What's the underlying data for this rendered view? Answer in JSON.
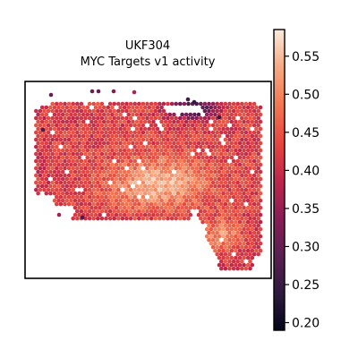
{
  "figure": {
    "sample": "UKF304",
    "subtitle": "MYC Targets v1 activity"
  },
  "chart_data": {
    "type": "scatter",
    "title": "UKF304",
    "subtitle": "MYC Targets v1 activity",
    "xlabel": "",
    "ylabel": "",
    "grid": false,
    "legend": "colorbar-right",
    "colormap": "rocket",
    "colorbar": {
      "min": 0.19,
      "max": 0.585,
      "ticks": [
        0.2,
        0.25,
        0.3,
        0.35,
        0.4,
        0.45,
        0.5,
        0.55
      ],
      "tick_labels": [
        "0.20",
        "0.25",
        "0.30",
        "0.35",
        "0.40",
        "0.45",
        "0.50",
        "0.55"
      ]
    },
    "colors": {
      "low": "#03051a",
      "mid_low": "#701f57",
      "mid": "#e13342",
      "mid_high": "#f6aa82",
      "high": "#faebdd"
    },
    "spots_description": "Hexagonal spatial transcriptomics spots forming tissue section; values mostly 0.40–0.47, highest (~0.55) in lower-central region, lowest (~0.20–0.28) at top-right edge"
  }
}
